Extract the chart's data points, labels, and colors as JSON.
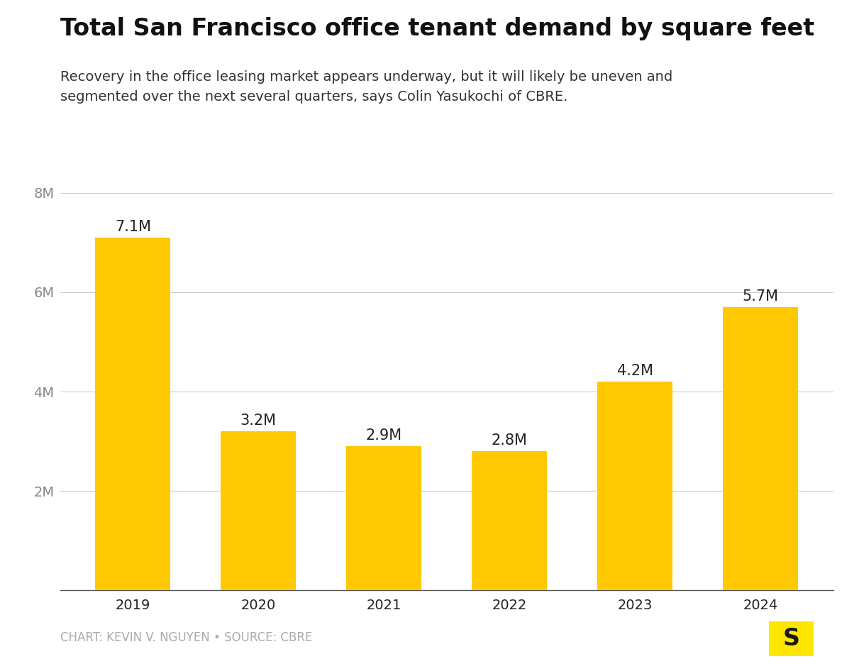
{
  "title": "Total San Francisco office tenant demand by square feet",
  "subtitle": "Recovery in the office leasing market appears underway, but it will likely be uneven and\nsegmented over the next several quarters, says Colin Yasukochi of CBRE.",
  "categories": [
    "2019",
    "2020",
    "2021",
    "2022",
    "2023",
    "2024"
  ],
  "values": [
    7100000,
    3200000,
    2900000,
    2800000,
    4200000,
    5700000
  ],
  "labels": [
    "7.1M",
    "3.2M",
    "2.9M",
    "2.8M",
    "4.2M",
    "5.7M"
  ],
  "bar_color": "#FFC800",
  "background_color": "#ffffff",
  "ylim": [
    0,
    8500000
  ],
  "yticks": [
    0,
    2000000,
    4000000,
    6000000,
    8000000
  ],
  "ytick_labels": [
    "",
    "2M",
    "4M",
    "6M",
    "8M"
  ],
  "title_fontsize": 24,
  "subtitle_fontsize": 14,
  "label_fontsize": 15,
  "tick_fontsize": 14,
  "footer_text": "CHART: KEVIN V. NGUYEN • SOURCE: CBRE",
  "footer_fontsize": 12,
  "logo_bg_color": "#FFE600",
  "logo_text": "S",
  "logo_text_color": "#1a1a1a"
}
